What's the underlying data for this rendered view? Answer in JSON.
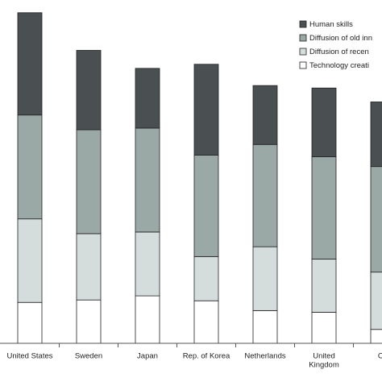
{
  "chart_data": {
    "type": "bar",
    "stacked": true,
    "categories": [
      "United States",
      "Sweden",
      "Japan",
      "Rep. of Korea",
      "Netherlands",
      "United Kingdom",
      "Ca"
    ],
    "category_lines": [
      [
        "United States"
      ],
      [
        "Sweden"
      ],
      [
        "Japan"
      ],
      [
        "Rep. of Korea"
      ],
      [
        "Netherlands"
      ],
      [
        "United",
        "Kingdom"
      ],
      [
        "Ca"
      ]
    ],
    "series": [
      {
        "name": "Technology creati",
        "color": "#ffffff",
        "values": [
          50,
          53,
          58,
          52,
          40,
          38,
          17
        ]
      },
      {
        "name": "Diffusion of recen",
        "color": "#d4dcdc",
        "values": [
          102,
          81,
          78,
          54,
          78,
          65,
          70
        ]
      },
      {
        "name": "Diffusion of old inn",
        "color": "#9aa8a6",
        "values": [
          127,
          127,
          127,
          124,
          125,
          125,
          129
        ]
      },
      {
        "name": "Human skills",
        "color": "#4a4f51",
        "values": [
          125,
          97,
          73,
          111,
          72,
          84,
          79
        ]
      }
    ],
    "legend_order": [
      3,
      2,
      1,
      0
    ],
    "legend_position": "top-right",
    "ylim": [
      0,
      390
    ],
    "grid": false,
    "title": "",
    "xlabel": "",
    "ylabel": ""
  }
}
